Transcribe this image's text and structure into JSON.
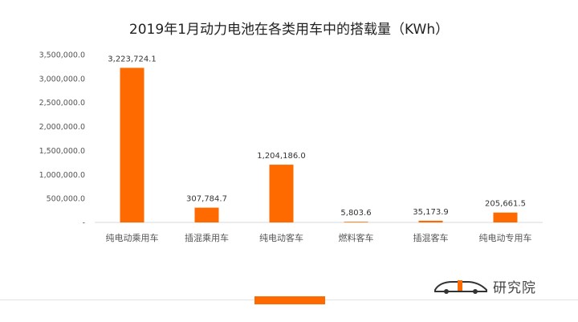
{
  "chart_data": {
    "type": "bar",
    "title": "2019年1月动力电池在各类用车中的搭载量（KWh）",
    "categories": [
      "纯电动乘用车",
      "插混乘用车",
      "纯电动客车",
      "燃料客车",
      "插混客车",
      "纯电动专用车"
    ],
    "values": [
      3223724.1,
      307784.7,
      1204186.0,
      5803.6,
      35173.9,
      205661.5
    ],
    "value_labels": [
      "3,223,724.1",
      "307,784.7",
      "1,204,186.0",
      "5,803.6",
      "35,173.9",
      "205,661.5"
    ],
    "ylim": [
      0,
      3500000
    ],
    "yticks": [
      0,
      500000,
      1000000,
      1500000,
      2000000,
      2500000,
      3000000,
      3500000
    ],
    "ytick_labels": [
      "-",
      "500,000.0",
      "1,000,000.0",
      "1,500,000.0",
      "2,000,000.0",
      "2,500,000.0",
      "3,000,000.0",
      "3,500,000.0"
    ],
    "xlabel": "",
    "ylabel": "",
    "grid": false,
    "bar_color": "#ff6a00"
  },
  "footer": {
    "logo_text": "研究院",
    "logo_icon": "car-logo-icon",
    "accent_color": "#ff6a00"
  }
}
